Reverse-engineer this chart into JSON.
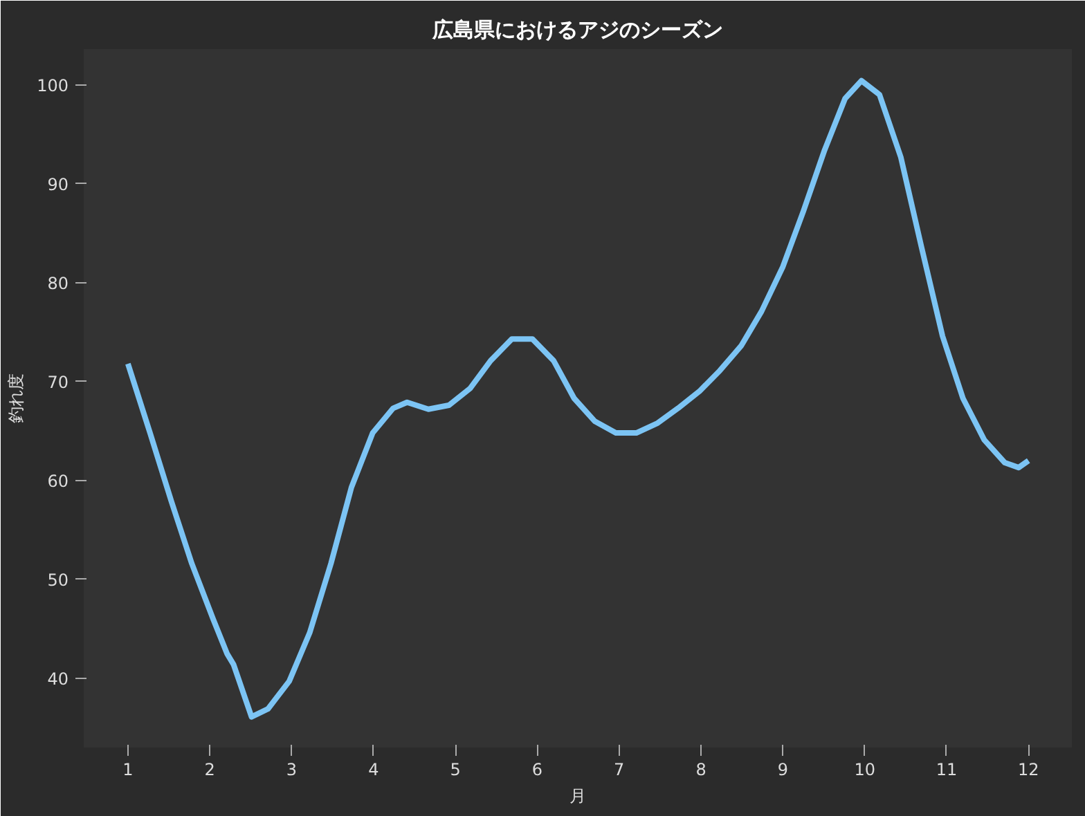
{
  "chart_data": {
    "type": "line",
    "title": "広島県におけるアジのシーズン",
    "xlabel": "月",
    "ylabel": "釣れ度",
    "xlim": [
      0.46,
      12.53
    ],
    "xticks": [
      1,
      2,
      3,
      4,
      5,
      6,
      7,
      8,
      9,
      10,
      11,
      12
    ],
    "ylim": [
      33.0,
      103.6
    ],
    "yticks": [
      40,
      50,
      60,
      70,
      80,
      90,
      100
    ],
    "grid": false,
    "marker": "none",
    "line_style": "solid",
    "series": [
      {
        "color": "#7cc4f4",
        "x": [
          1.0,
          1.27,
          1.53,
          1.78,
          2.04,
          2.21,
          2.29,
          2.51,
          2.71,
          2.97,
          3.22,
          3.48,
          3.73,
          3.99,
          4.24,
          4.41,
          4.67,
          4.92,
          5.18,
          5.43,
          5.69,
          5.94,
          6.2,
          6.45,
          6.7,
          6.96,
          7.21,
          7.47,
          7.72,
          7.98,
          8.23,
          8.49,
          8.74,
          9.0,
          9.25,
          9.51,
          9.76,
          9.96,
          10.18,
          10.44,
          10.69,
          10.95,
          11.2,
          11.46,
          11.71,
          11.88,
          12.0
        ],
        "values": [
          71.8,
          64.8,
          57.9,
          51.6,
          46.0,
          42.5,
          41.4,
          36.1,
          36.9,
          39.7,
          44.6,
          51.6,
          59.3,
          64.8,
          67.3,
          67.9,
          67.2,
          67.6,
          69.3,
          72.1,
          74.3,
          74.3,
          72.1,
          68.3,
          66.0,
          64.8,
          64.8,
          65.8,
          67.3,
          69.0,
          71.1,
          73.6,
          77.1,
          81.6,
          87.2,
          93.4,
          98.6,
          100.4,
          99.0,
          92.7,
          83.7,
          74.6,
          68.3,
          64.1,
          61.8,
          61.3,
          62.0
        ]
      }
    ]
  }
}
